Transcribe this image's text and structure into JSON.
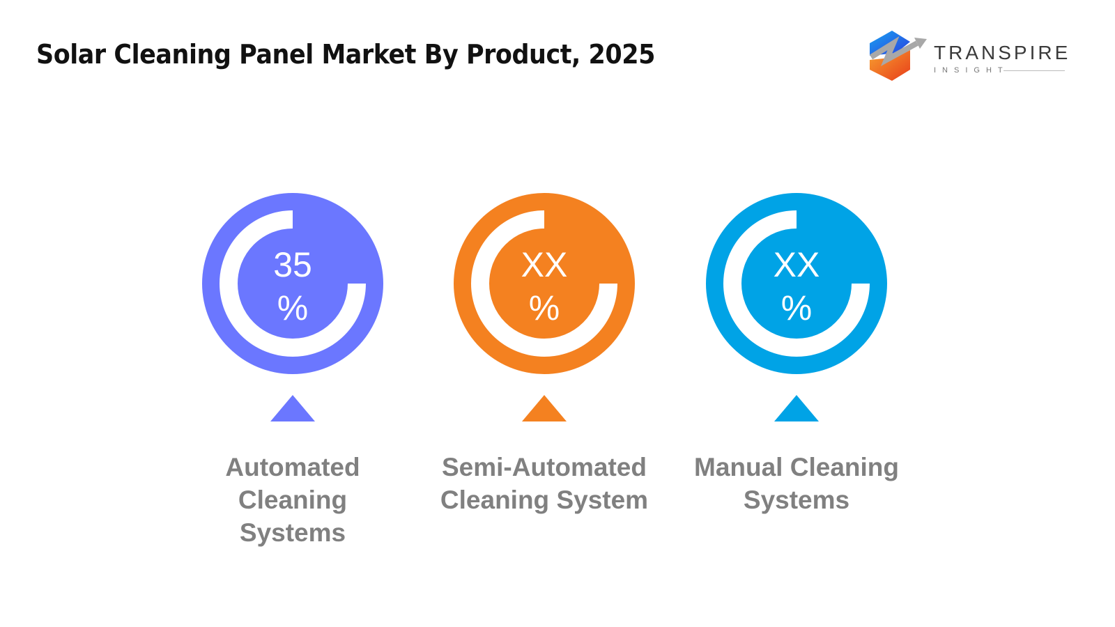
{
  "title": "Solar Cleaning Panel Market By Product, 2025",
  "logo": {
    "brand": "TRANSPIRE",
    "sub": "INSIGHT"
  },
  "chart_data": {
    "type": "infographic-donut",
    "categories": [
      "Automated Cleaning Systems",
      "Semi-Automated Cleaning System",
      "Manual Cleaning Systems"
    ],
    "values": [
      "35",
      "XX",
      "XX"
    ],
    "unit": "%",
    "colors": [
      "#6B77FF",
      "#F48120",
      "#00A3E6"
    ]
  },
  "items": [
    {
      "value": "35",
      "unit": "%",
      "label": "Automated Cleaning Systems",
      "color": "#6B77FF"
    },
    {
      "value": "XX",
      "unit": "%",
      "label": "Semi-Automated Cleaning System",
      "color": "#F48120"
    },
    {
      "value": "XX",
      "unit": "%",
      "label": "Manual Cleaning Systems",
      "color": "#00A3E6"
    }
  ]
}
